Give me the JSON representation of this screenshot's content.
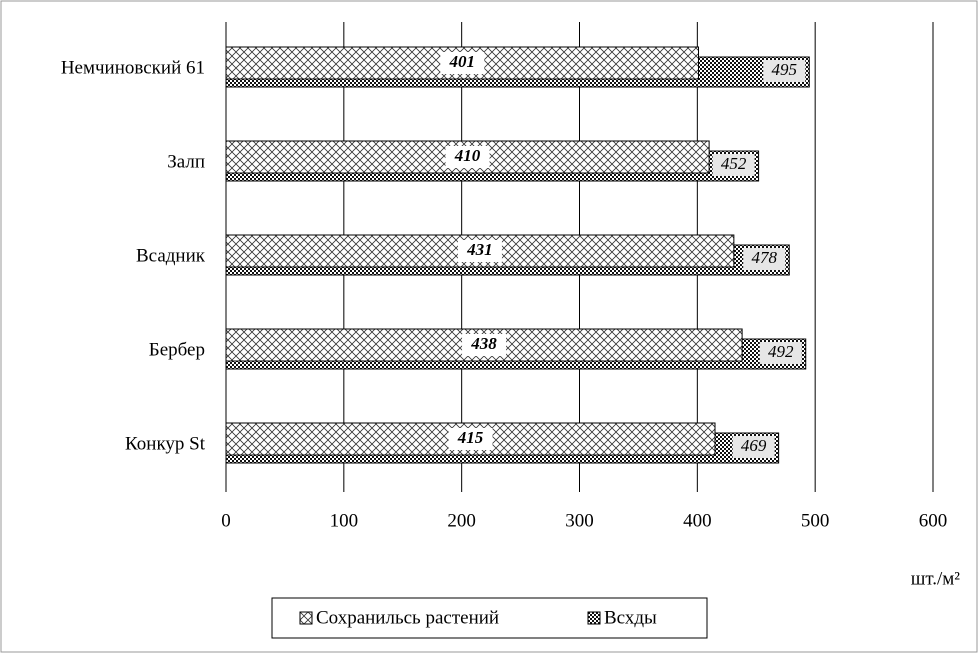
{
  "chart_data": {
    "type": "bar",
    "orientation": "horizontal",
    "overlap": true,
    "categories": [
      "Немчиновский 61",
      "Залп",
      "Всадник",
      "Бербер",
      "Конкур St"
    ],
    "series": [
      {
        "name": "Сохранильсь растений",
        "color": "#000000",
        "values": [
          401,
          410,
          431,
          438,
          415
        ]
      },
      {
        "name": "Всхды",
        "color": "#000000",
        "values": [
          495,
          452,
          478,
          492,
          469
        ]
      }
    ],
    "xlim": [
      0,
      600
    ],
    "xticks": [
      0,
      100,
      200,
      300,
      400,
      500,
      600
    ],
    "grid": true,
    "xlabel": "шт./м²",
    "legend": "bottom"
  }
}
